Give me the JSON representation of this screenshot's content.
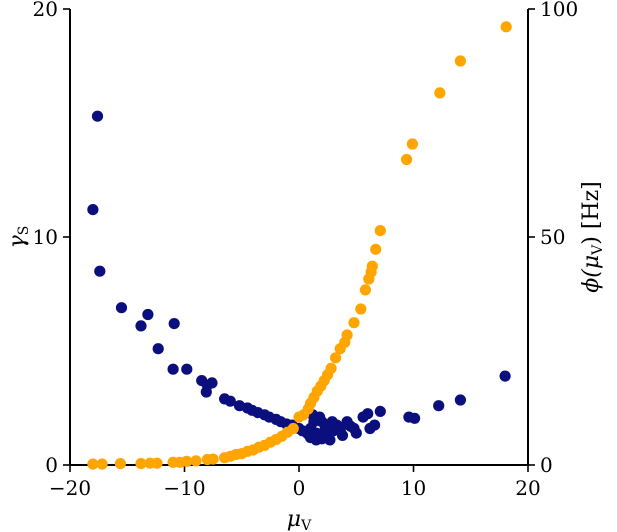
{
  "chart_data": {
    "type": "scatter",
    "title": "",
    "xlabel": "μ",
    "xlabel_sub": "V",
    "ylabel": "γ",
    "ylabel_sub": "S",
    "y2label_prefix": "ϕ(μ",
    "y2label_sub": "V",
    "y2label_suffix": ") [Hz]",
    "xlim": [
      -20,
      20
    ],
    "ylim": [
      0,
      20
    ],
    "y2lim": [
      0,
      100
    ],
    "xticks": [
      "−20",
      "−10",
      "0",
      "10",
      "20"
    ],
    "yticks": [
      "0",
      "10",
      "20"
    ],
    "y2ticks": [
      "0",
      "50",
      "100"
    ],
    "grid": false,
    "series": [
      {
        "axis": "left",
        "color": "#0b0f7e",
        "points": [
          [
            -18.0,
            11.2
          ],
          [
            -17.6,
            15.3
          ],
          [
            -17.4,
            8.5
          ],
          [
            -15.5,
            6.9
          ],
          [
            -13.8,
            6.1
          ],
          [
            -13.2,
            6.6
          ],
          [
            -12.3,
            5.1
          ],
          [
            -10.9,
            6.2
          ],
          [
            -11.0,
            4.2
          ],
          [
            -9.8,
            4.2
          ],
          [
            -8.5,
            3.7
          ],
          [
            -8.0,
            3.5
          ],
          [
            -7.6,
            3.6
          ],
          [
            -8.1,
            3.2
          ],
          [
            -6.5,
            2.9
          ],
          [
            -6.0,
            2.8
          ],
          [
            -5.2,
            2.6
          ],
          [
            -4.5,
            2.5
          ],
          [
            -4.1,
            2.4
          ],
          [
            -3.6,
            2.3
          ],
          [
            -3.0,
            2.2
          ],
          [
            -2.6,
            2.1
          ],
          [
            -2.0,
            2.0
          ],
          [
            -1.6,
            1.9
          ],
          [
            -1.1,
            1.8
          ],
          [
            -0.6,
            1.75
          ],
          [
            0.0,
            1.6
          ],
          [
            0.3,
            1.5
          ],
          [
            0.6,
            1.45
          ],
          [
            0.8,
            1.35
          ],
          [
            1.0,
            1.6
          ],
          [
            1.0,
            1.2
          ],
          [
            1.2,
            2.2
          ],
          [
            1.3,
            1.9
          ],
          [
            1.5,
            1.4
          ],
          [
            1.5,
            1.1
          ],
          [
            1.8,
            2.1
          ],
          [
            1.8,
            1.3
          ],
          [
            2.0,
            1.9
          ],
          [
            2.0,
            1.15
          ],
          [
            2.3,
            1.6
          ],
          [
            2.5,
            1.35
          ],
          [
            2.7,
            1.1
          ],
          [
            2.9,
            1.9
          ],
          [
            3.0,
            1.5
          ],
          [
            3.3,
            1.75
          ],
          [
            3.6,
            1.55
          ],
          [
            3.8,
            1.3
          ],
          [
            4.2,
            1.9
          ],
          [
            4.5,
            1.7
          ],
          [
            4.8,
            1.6
          ],
          [
            5.0,
            1.4
          ],
          [
            5.6,
            2.1
          ],
          [
            6.0,
            2.25
          ],
          [
            6.2,
            1.6
          ],
          [
            6.6,
            1.75
          ],
          [
            7.1,
            2.35
          ],
          [
            9.6,
            2.1
          ],
          [
            10.1,
            2.05
          ],
          [
            12.2,
            2.6
          ],
          [
            14.1,
            2.85
          ],
          [
            18.0,
            3.9
          ]
        ]
      },
      {
        "axis": "right",
        "color": "#ffa500",
        "points": [
          [
            -18.0,
            0.2
          ],
          [
            -17.2,
            0.2
          ],
          [
            -15.6,
            0.3
          ],
          [
            -13.8,
            0.3
          ],
          [
            -13.0,
            0.4
          ],
          [
            -12.4,
            0.4
          ],
          [
            -11.0,
            0.6
          ],
          [
            -10.4,
            0.6
          ],
          [
            -9.8,
            0.8
          ],
          [
            -9.0,
            0.9
          ],
          [
            -8.0,
            1.2
          ],
          [
            -7.5,
            1.3
          ],
          [
            -6.5,
            1.6
          ],
          [
            -6.0,
            1.9
          ],
          [
            -5.5,
            2.3
          ],
          [
            -5.0,
            2.5
          ],
          [
            -4.5,
            3.0
          ],
          [
            -4.0,
            3.3
          ],
          [
            -3.5,
            3.9
          ],
          [
            -3.0,
            4.3
          ],
          [
            -2.5,
            5.0
          ],
          [
            -2.0,
            5.6
          ],
          [
            -1.5,
            6.3
          ],
          [
            -1.0,
            7.2
          ],
          [
            -0.5,
            8.0
          ],
          [
            0.0,
            10.5
          ],
          [
            0.4,
            11.0
          ],
          [
            0.8,
            12.3
          ],
          [
            1.0,
            13.5
          ],
          [
            1.3,
            14.8
          ],
          [
            1.6,
            16.2
          ],
          [
            1.9,
            17.3
          ],
          [
            2.2,
            18.5
          ],
          [
            2.5,
            19.8
          ],
          [
            2.8,
            21.2
          ],
          [
            3.2,
            23.5
          ],
          [
            3.6,
            25.5
          ],
          [
            4.0,
            26.9
          ],
          [
            4.2,
            28.5
          ],
          [
            4.8,
            31.2
          ],
          [
            5.4,
            34.2
          ],
          [
            5.8,
            38.4
          ],
          [
            6.1,
            40.8
          ],
          [
            6.3,
            42.3
          ],
          [
            6.4,
            43.6
          ],
          [
            6.7,
            47.3
          ],
          [
            7.1,
            51.4
          ],
          [
            9.4,
            67.0
          ],
          [
            9.9,
            70.4
          ],
          [
            12.3,
            81.6
          ],
          [
            14.1,
            88.6
          ],
          [
            18.1,
            96.1
          ]
        ]
      }
    ]
  }
}
